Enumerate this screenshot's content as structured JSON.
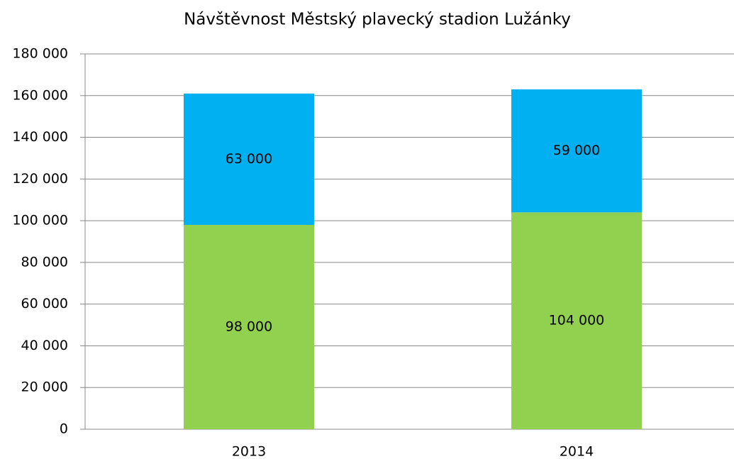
{
  "chart_data": {
    "type": "stacked_bar",
    "title": "Návštěvnost Městský plavecký stadion Lužánky",
    "categories": [
      "2013",
      "2014"
    ],
    "series": [
      {
        "color": "#92d050",
        "values": [
          98000,
          104000
        ],
        "value_labels": [
          "98 000",
          "104 000"
        ]
      },
      {
        "color": "#00b0f0",
        "values": [
          63000,
          59000
        ],
        "value_labels": [
          "63 000",
          "59 000"
        ]
      }
    ],
    "ylim": [
      0,
      180000
    ],
    "yticks": [
      {
        "value": 0,
        "label": "0"
      },
      {
        "value": 20000,
        "label": "20 000"
      },
      {
        "value": 40000,
        "label": "40 000"
      },
      {
        "value": 60000,
        "label": "60 000"
      },
      {
        "value": 80000,
        "label": "80 000"
      },
      {
        "value": 100000,
        "label": "100 000"
      },
      {
        "value": 120000,
        "label": "120 000"
      },
      {
        "value": 140000,
        "label": "140 000"
      },
      {
        "value": 160000,
        "label": "160 000"
      },
      {
        "value": 180000,
        "label": "180 000"
      }
    ],
    "grid": true
  }
}
